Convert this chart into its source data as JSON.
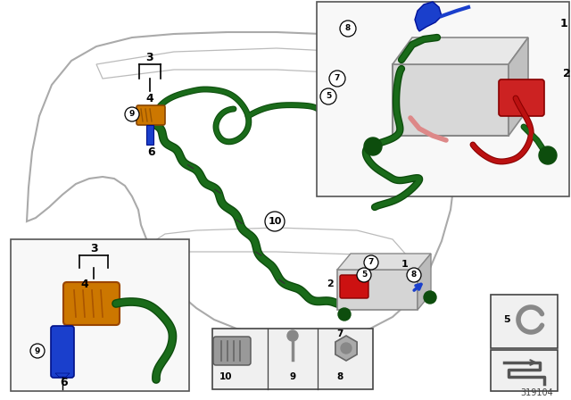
{
  "bg_color": "#ffffff",
  "cable_green": "#1a6b1a",
  "cable_dark_green": "#0d4d0d",
  "cable_red": "#aa0000",
  "cable_darkred": "#880000",
  "cable_blue": "#1a3fcc",
  "cable_pink": "#dd8888",
  "part_orange": "#cc7700",
  "label_color": "#000000",
  "box_fill": "#f8f8f8",
  "box_edge": "#555555",
  "catalog_number": "319104",
  "car_color": "#aaaaaa",
  "car_lw": 1.5,
  "inner_car_color": "#bbbbbb",
  "inner_car_lw": 0.9
}
